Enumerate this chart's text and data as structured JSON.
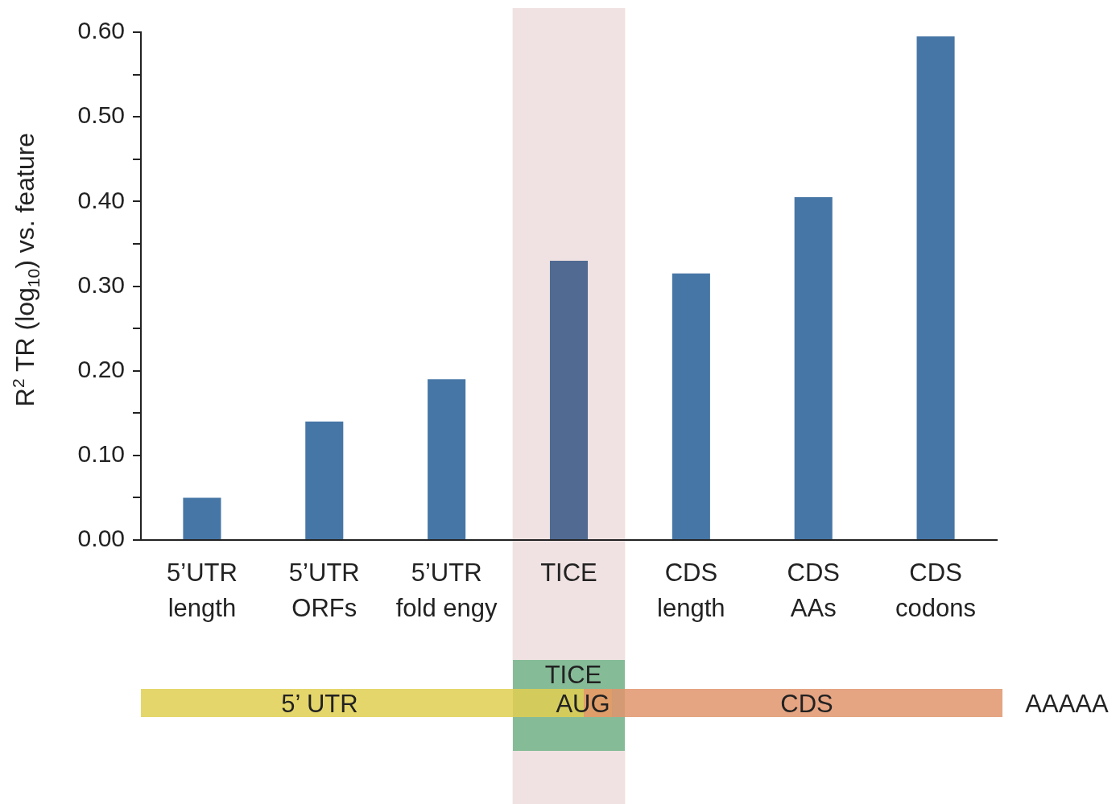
{
  "chart_data": {
    "type": "bar",
    "ylabel": "R$^{2}$ TR (log$_{10}$) vs. feature",
    "categories": [
      "5’UTR length",
      "5’UTR ORFs",
      "5’UTR fold engy",
      "TICE",
      "CDS length",
      "CDS AAs",
      "CDS codons"
    ],
    "values": [
      0.05,
      0.14,
      0.19,
      0.33,
      0.315,
      0.405,
      0.595
    ],
    "colors": [
      "#4676a6",
      "#4676a6",
      "#4676a6",
      "#506a92",
      "#4676a6",
      "#4676a6",
      "#4676a6"
    ],
    "ylim": [
      0,
      0.6
    ],
    "yticks": [
      {
        "value": 0,
        "label": "0.00"
      },
      {
        "value": 0.05,
        "label": null
      },
      {
        "value": 0.1,
        "label": "0.10"
      },
      {
        "value": 0.15,
        "label": null
      },
      {
        "value": 0.2,
        "label": "0.20"
      },
      {
        "value": 0.25,
        "label": null
      },
      {
        "value": 0.3,
        "label": "0.30"
      },
      {
        "value": 0.35,
        "label": null
      },
      {
        "value": 0.4,
        "label": "0.40"
      },
      {
        "value": 0.45,
        "label": null
      },
      {
        "value": 0.5,
        "label": "0.50"
      },
      {
        "value": 0.55,
        "label": null
      },
      {
        "value": 0.6,
        "label": "0.60"
      }
    ],
    "bands": [
      {
        "axis": "x",
        "from": "TICE",
        "to": "TICE",
        "color": "#f0e2e3"
      }
    ],
    "annotations": [
      "5’ UTR",
      "TICE",
      "AUG",
      "CDS",
      "AAAAA"
    ]
  }
}
